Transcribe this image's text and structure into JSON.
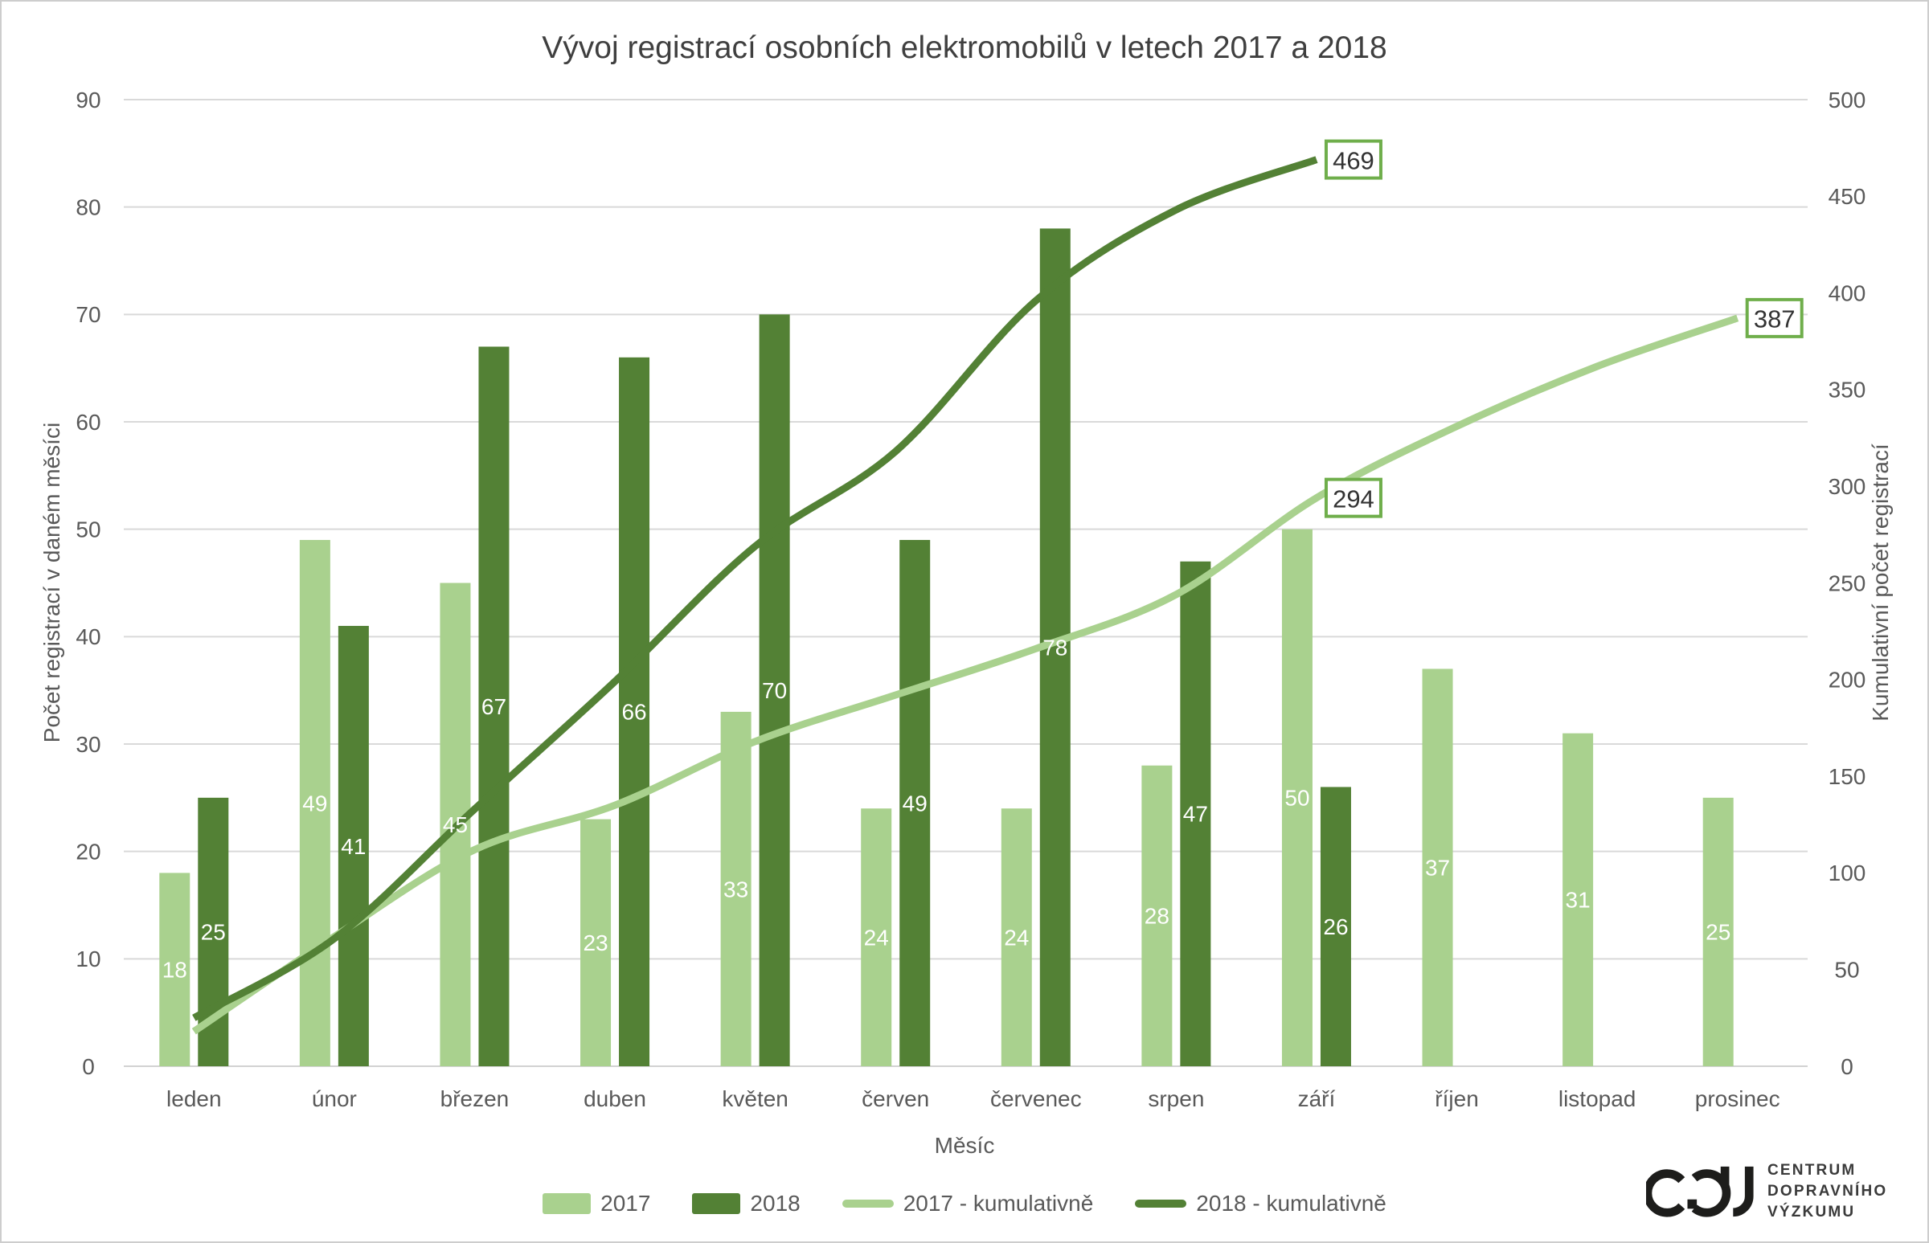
{
  "title": "Vývoj registrací osobních elektromobilů v letech 2017 a 2018",
  "x_axis": {
    "label": "Měsíc"
  },
  "y_axis_left": {
    "label": "Počet registrací v daném měsíci",
    "min": 0,
    "max": 90,
    "step": 10
  },
  "y_axis_right": {
    "label": "Kumulativní počet registrací",
    "min": 0,
    "max": 500,
    "step": 50
  },
  "chart_data": {
    "type": "bar+line combo",
    "categories": [
      "leden",
      "únor",
      "březen",
      "duben",
      "květen",
      "červen",
      "červenec",
      "srpen",
      "září",
      "říjen",
      "listopad",
      "prosinec"
    ],
    "series": [
      {
        "name": "2017",
        "type": "bar",
        "color": "#a9d18e",
        "values": [
          18,
          49,
          45,
          23,
          33,
          24,
          24,
          28,
          50,
          37,
          31,
          25
        ]
      },
      {
        "name": "2018",
        "type": "bar",
        "color": "#538135",
        "values": [
          25,
          41,
          67,
          66,
          70,
          49,
          78,
          47,
          26
        ]
      },
      {
        "name": "2017 - kumulativně",
        "type": "line",
        "axis": "right",
        "color": "#a9d18e",
        "values": [
          18,
          67,
          112,
          135,
          168,
          192,
          216,
          244,
          294,
          331,
          362,
          387
        ],
        "annotations": [
          {
            "index": 8,
            "text": "294"
          },
          {
            "index": 11,
            "text": "387"
          }
        ]
      },
      {
        "name": "2018 - kumulativně",
        "type": "line",
        "axis": "right",
        "color": "#538135",
        "values": [
          25,
          66,
          133,
          199,
          269,
          318,
          396,
          443,
          469
        ],
        "annotations": [
          {
            "index": 8,
            "text": "469"
          }
        ]
      }
    ],
    "grid": true,
    "legend_position": "bottom"
  },
  "legend": [
    {
      "label": "2017",
      "swatch": "bar",
      "color": "#a9d18e"
    },
    {
      "label": "2018",
      "swatch": "bar",
      "color": "#538135"
    },
    {
      "label": "2017 - kumulativně",
      "swatch": "line",
      "color": "#a9d18e"
    },
    {
      "label": "2018 - kumulativně",
      "swatch": "line",
      "color": "#538135"
    }
  ],
  "colors": {
    "grid": "#d9d9d9",
    "axis_line": "#d2d2d2",
    "tick_text": "#595959",
    "bar_label": "#ffffff",
    "annotation_border": "#6fae4b",
    "annotation_text": "#333333"
  },
  "logo": {
    "mark": "CDV",
    "lines": [
      "CENTRUM",
      "DOPRAVNÍHO",
      "VÝZKUMU"
    ]
  }
}
